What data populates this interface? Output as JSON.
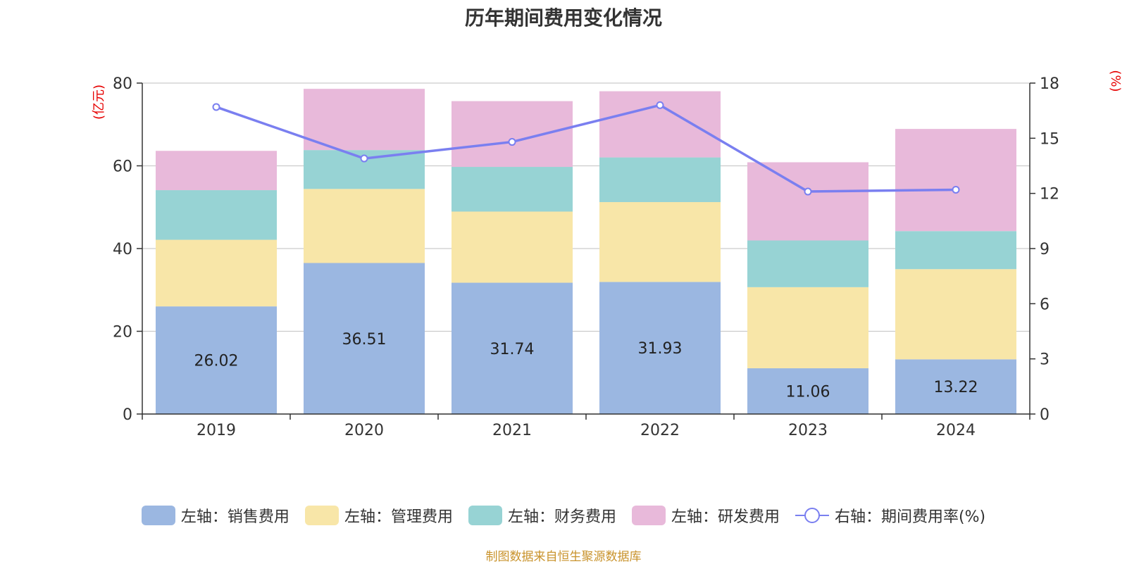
{
  "chart_data": {
    "type": "bar",
    "title": "历年期间费用变化情况",
    "categories": [
      "2019",
      "2020",
      "2021",
      "2022",
      "2023",
      "2024"
    ],
    "left_axis": {
      "label": "(亿元)",
      "min": 0,
      "max": 80,
      "ticks": [
        "0",
        "20",
        "40",
        "60",
        "80"
      ]
    },
    "right_axis": {
      "label": "(%)",
      "min": 0,
      "max": 18,
      "ticks": [
        "0",
        "3",
        "6",
        "9",
        "12",
        "15",
        "18"
      ]
    },
    "series": [
      {
        "name": "左轴：销售费用",
        "axis": "left",
        "type": "bar",
        "stack": "total",
        "color": "#9bb7e1",
        "values": [
          26.02,
          36.51,
          31.74,
          31.93,
          11.06,
          13.22
        ],
        "labels": [
          "26.02",
          "36.51",
          "31.74",
          "31.93",
          "11.06",
          "13.22"
        ]
      },
      {
        "name": "左轴：管理费用",
        "axis": "left",
        "type": "bar",
        "stack": "total",
        "color": "#f8e6a8",
        "values": [
          16.1,
          17.9,
          17.2,
          19.3,
          19.6,
          21.8
        ]
      },
      {
        "name": "左轴：财务费用",
        "axis": "left",
        "type": "bar",
        "stack": "total",
        "color": "#97d3d4",
        "values": [
          12.0,
          9.4,
          10.8,
          10.8,
          11.3,
          9.2
        ]
      },
      {
        "name": "左轴：研发费用",
        "axis": "left",
        "type": "bar",
        "stack": "total",
        "color": "#e8b9da",
        "values": [
          9.5,
          14.8,
          15.9,
          16.0,
          18.9,
          24.7
        ]
      },
      {
        "name": "右轴：期间费用率(%)",
        "axis": "right",
        "type": "line",
        "color": "#7a7ff0",
        "values": [
          16.7,
          13.9,
          14.8,
          16.8,
          12.1,
          12.2
        ]
      }
    ]
  },
  "source_text": "制图数据来自恒生聚源数据库"
}
